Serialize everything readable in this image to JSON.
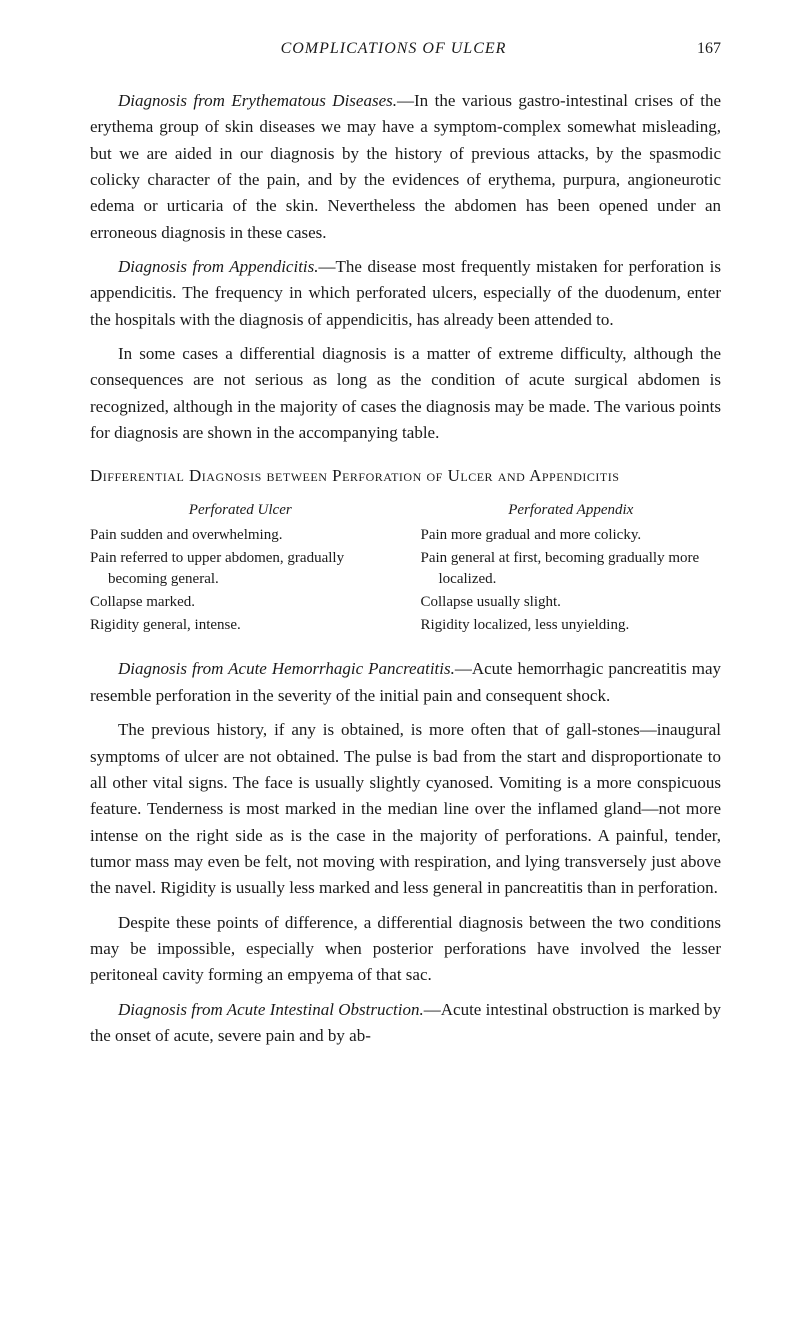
{
  "header": {
    "title": "COMPLICATIONS OF ULCER",
    "page_number": "167"
  },
  "paragraphs": {
    "p1_lead": "Diagnosis from Erythematous Diseases.",
    "p1_body": "—In the various gastro-intestinal crises of the erythema group of skin diseases we may have a symptom-complex somewhat misleading, but we are aided in our diagnosis by the history of previous attacks, by the spasmodic colicky character of the pain, and by the evidences of erythema, purpura, angioneurotic edema or urticaria of the skin. Nevertheless the abdomen has been opened under an erroneous diagnosis in these cases.",
    "p2_lead": "Diagnosis from Appendicitis.",
    "p2_body": "—The disease most frequently mistaken for perforation is appendicitis. The frequency in which perforated ulcers, especially of the duodenum, enter the hospitals with the diagnosis of appendicitis, has already been attended to.",
    "p3": "In some cases a differential diagnosis is a matter of extreme difficulty, although the consequences are not serious as long as the condition of acute surgical abdomen is recognized, although in the majority of cases the diagnosis may be made. The various points for diagnosis are shown in the accompanying table.",
    "section_heading": "Differential Diagnosis between Perforation of Ulcer and Appendicitis",
    "p4_lead": "Diagnosis from Acute Hemorrhagic Pancreatitis.",
    "p4_body": "—Acute hemorrhagic pancreatitis may resemble perforation in the severity of the initial pain and consequent shock.",
    "p5": "The previous history, if any is obtained, is more often that of gall-stones—inaugural symptoms of ulcer are not obtained. The pulse is bad from the start and disproportionate to all other vital signs. The face is usually slightly cyanosed. Vomiting is a more conspicuous feature. Tenderness is most marked in the median line over the inflamed gland—not more intense on the right side as is the case in the majority of perforations. A painful, tender, tumor mass may even be felt, not moving with respiration, and lying transversely just above the navel. Rigidity is usually less marked and less general in pancreatitis than in perforation.",
    "p6": "Despite these points of difference, a differential diagnosis between the two conditions may be impossible, especially when posterior perforations have involved the lesser peritoneal cavity forming an empyema of that sac.",
    "p7_lead": "Diagnosis from Acute Intestinal Obstruction.",
    "p7_body": "—Acute intestinal obstruction is marked by the onset of acute, severe pain and by ab-"
  },
  "table": {
    "left": {
      "heading": "Perforated Ulcer",
      "items": [
        "Pain sudden and overwhelming.",
        "Pain referred to upper abdomen, gradually becoming general.",
        "Collapse marked.",
        "Rigidity general, intense."
      ]
    },
    "right": {
      "heading": "Perforated Appendix",
      "items": [
        "Pain more gradual and more colicky.",
        "Pain general at first, becoming gradually more localized.",
        "Collapse usually slight.",
        "Rigidity localized, less unyielding."
      ]
    }
  },
  "colors": {
    "background": "#ffffff",
    "text": "#1a1a1a"
  },
  "fonts": {
    "body_size": 17,
    "table_size": 15,
    "header_size": 16
  }
}
